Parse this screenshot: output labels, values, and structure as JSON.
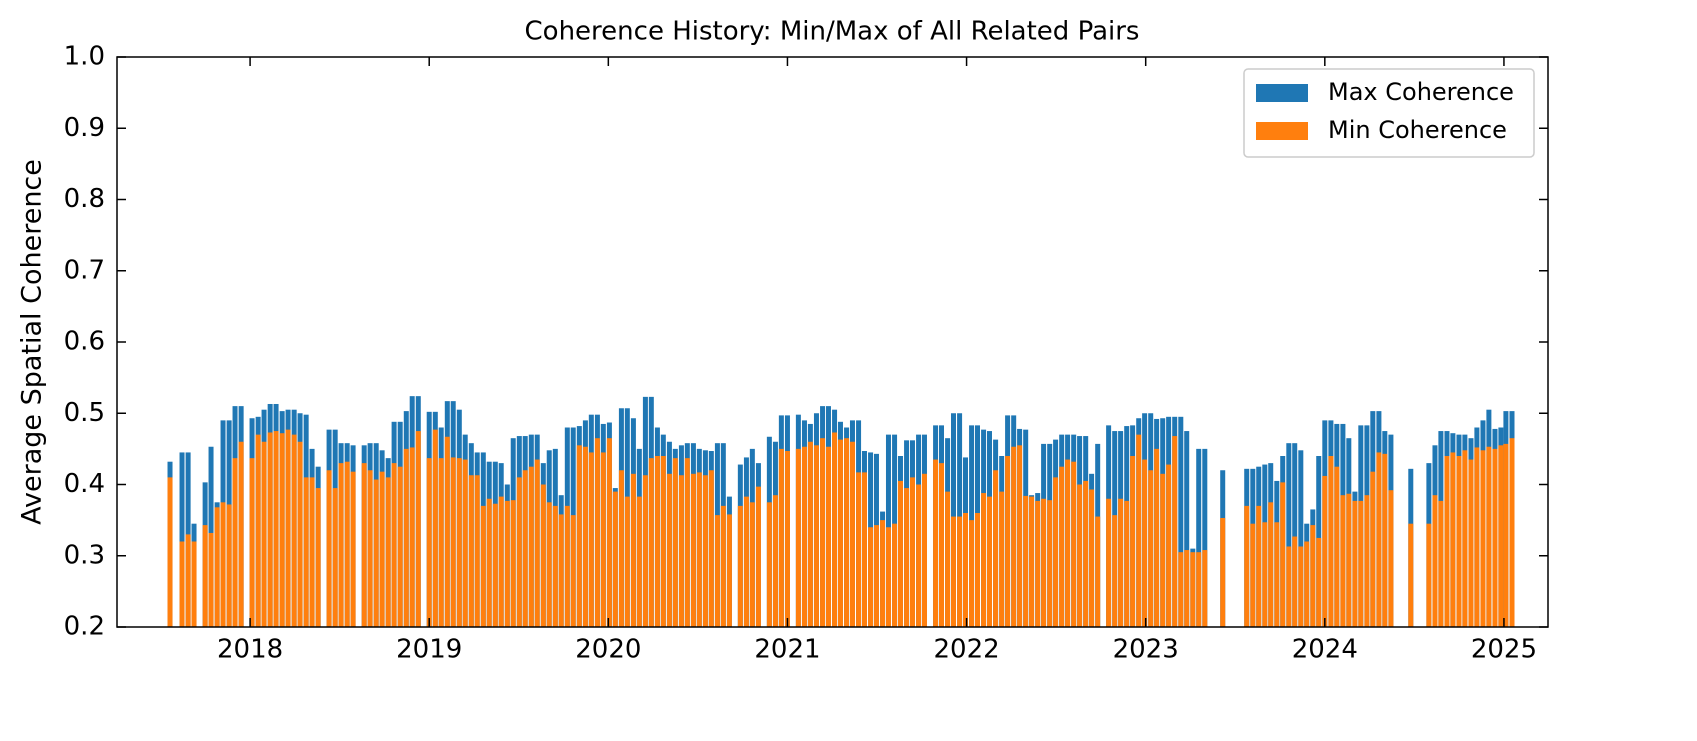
{
  "chart_data": {
    "type": "bar",
    "title": "Coherence History: Min/Max of All Related Pairs",
    "y_label": "Average Spatial Coherence",
    "legend": "upper right",
    "grid": false,
    "xlim": [
      2017.257,
      2025.246
    ],
    "xticks": [
      2018,
      2019,
      2020,
      2021,
      2022,
      2023,
      2024,
      2025
    ],
    "ylim": [
      0.2,
      1.0
    ],
    "yticks": [
      0.2,
      0.3,
      0.4,
      0.5,
      0.6,
      0.7,
      0.8,
      0.9,
      {
        "value": 1.0,
        "label": "1.0"
      }
    ],
    "x": [
      2017.553,
      2017.62,
      2017.654,
      2017.687,
      2017.749,
      2017.782,
      2017.816,
      2017.849,
      2017.883,
      2017.916,
      2017.95,
      2018.011,
      2018.045,
      2018.078,
      2018.112,
      2018.145,
      2018.179,
      2018.212,
      2018.246,
      2018.279,
      2018.313,
      2018.346,
      2018.38,
      2018.441,
      2018.475,
      2018.508,
      2018.542,
      2018.575,
      2018.637,
      2018.67,
      2018.704,
      2018.737,
      2018.771,
      2018.804,
      2018.838,
      2018.872,
      2018.905,
      2018.939,
      2019.0,
      2019.034,
      2019.067,
      2019.101,
      2019.134,
      2019.168,
      2019.201,
      2019.235,
      2019.268,
      2019.302,
      2019.335,
      2019.369,
      2019.402,
      2019.436,
      2019.469,
      2019.503,
      2019.536,
      2019.57,
      2019.603,
      2019.637,
      2019.67,
      2019.704,
      2019.737,
      2019.771,
      2019.804,
      2019.838,
      2019.872,
      2019.905,
      2019.939,
      2019.972,
      2020.006,
      2020.039,
      2020.073,
      2020.106,
      2020.14,
      2020.173,
      2020.207,
      2020.24,
      2020.274,
      2020.307,
      2020.341,
      2020.374,
      2020.408,
      2020.441,
      2020.475,
      2020.508,
      2020.542,
      2020.575,
      2020.609,
      2020.642,
      2020.676,
      2020.737,
      2020.771,
      2020.804,
      2020.838,
      2020.899,
      2020.933,
      2020.966,
      2021.0,
      2021.061,
      2021.095,
      2021.128,
      2021.162,
      2021.196,
      2021.229,
      2021.263,
      2021.296,
      2021.33,
      2021.363,
      2021.397,
      2021.43,
      2021.464,
      2021.497,
      2021.531,
      2021.564,
      2021.598,
      2021.631,
      2021.665,
      2021.698,
      2021.732,
      2021.765,
      2021.827,
      2021.86,
      2021.894,
      2021.927,
      2021.961,
      2021.994,
      2022.028,
      2022.061,
      2022.095,
      2022.128,
      2022.162,
      2022.196,
      2022.229,
      2022.263,
      2022.296,
      2022.33,
      2022.363,
      2022.397,
      2022.43,
      2022.464,
      2022.497,
      2022.531,
      2022.564,
      2022.598,
      2022.631,
      2022.665,
      2022.698,
      2022.732,
      2022.793,
      2022.827,
      2022.86,
      2022.894,
      2022.927,
      2022.961,
      2022.994,
      2023.028,
      2023.061,
      2023.095,
      2023.128,
      2023.162,
      2023.196,
      2023.229,
      2023.263,
      2023.296,
      2023.33,
      2023.43,
      2023.564,
      2023.598,
      2023.631,
      2023.665,
      2023.698,
      2023.732,
      2023.765,
      2023.799,
      2023.832,
      2023.866,
      2023.899,
      2023.933,
      2023.966,
      2024.0,
      2024.034,
      2024.067,
      2024.101,
      2024.134,
      2024.168,
      2024.201,
      2024.235,
      2024.268,
      2024.302,
      2024.335,
      2024.369,
      2024.48,
      2024.581,
      2024.615,
      2024.648,
      2024.682,
      2024.715,
      2024.749,
      2024.782,
      2024.816,
      2024.849,
      2024.883,
      2024.916,
      2024.95,
      2024.983,
      2025.011,
      2025.045
    ],
    "series": [
      {
        "name": "Max Coherence",
        "color": "#1f77b4",
        "values": [
          0.432,
          0.445,
          0.445,
          0.345,
          0.403,
          0.453,
          0.375,
          0.49,
          0.49,
          0.51,
          0.51,
          0.493,
          0.495,
          0.505,
          0.513,
          0.513,
          0.503,
          0.505,
          0.505,
          0.5,
          0.498,
          0.45,
          0.425,
          0.477,
          0.477,
          0.458,
          0.458,
          0.455,
          0.455,
          0.458,
          0.458,
          0.448,
          0.437,
          0.488,
          0.488,
          0.503,
          0.524,
          0.524,
          0.502,
          0.502,
          0.48,
          0.517,
          0.517,
          0.505,
          0.47,
          0.458,
          0.445,
          0.445,
          0.432,
          0.432,
          0.43,
          0.4,
          0.465,
          0.468,
          0.468,
          0.47,
          0.47,
          0.43,
          0.448,
          0.45,
          0.385,
          0.48,
          0.48,
          0.482,
          0.49,
          0.498,
          0.498,
          0.485,
          0.487,
          0.395,
          0.507,
          0.507,
          0.493,
          0.45,
          0.523,
          0.523,
          0.48,
          0.47,
          0.46,
          0.45,
          0.455,
          0.458,
          0.458,
          0.45,
          0.448,
          0.447,
          0.458,
          0.458,
          0.383,
          0.428,
          0.438,
          0.45,
          0.43,
          0.467,
          0.46,
          0.497,
          0.497,
          0.498,
          0.49,
          0.485,
          0.5,
          0.51,
          0.51,
          0.505,
          0.488,
          0.48,
          0.49,
          0.49,
          0.447,
          0.445,
          0.443,
          0.362,
          0.47,
          0.47,
          0.44,
          0.462,
          0.462,
          0.47,
          0.47,
          0.483,
          0.483,
          0.465,
          0.5,
          0.5,
          0.438,
          0.483,
          0.483,
          0.477,
          0.475,
          0.463,
          0.44,
          0.497,
          0.497,
          0.478,
          0.477,
          0.385,
          0.388,
          0.457,
          0.457,
          0.463,
          0.47,
          0.47,
          0.47,
          0.468,
          0.468,
          0.415,
          0.457,
          0.483,
          0.475,
          0.475,
          0.482,
          0.483,
          0.493,
          0.5,
          0.5,
          0.492,
          0.493,
          0.495,
          0.495,
          0.495,
          0.475,
          0.31,
          0.45,
          0.45,
          0.42,
          0.422,
          0.422,
          0.425,
          0.428,
          0.43,
          0.405,
          0.44,
          0.458,
          0.458,
          0.448,
          0.345,
          0.365,
          0.44,
          0.49,
          0.49,
          0.485,
          0.485,
          0.465,
          0.39,
          0.483,
          0.483,
          0.503,
          0.503,
          0.475,
          0.47,
          0.422,
          0.43,
          0.455,
          0.475,
          0.475,
          0.472,
          0.47,
          0.47,
          0.465,
          0.48,
          0.49,
          0.505,
          0.478,
          0.48,
          0.503,
          0.503
        ]
      },
      {
        "name": "Min Coherence",
        "color": "#ff7f0e",
        "values": [
          0.41,
          0.32,
          0.33,
          0.32,
          0.343,
          0.332,
          0.368,
          0.375,
          0.372,
          0.437,
          0.46,
          0.437,
          0.47,
          0.46,
          0.473,
          0.475,
          0.472,
          0.477,
          0.47,
          0.46,
          0.41,
          0.41,
          0.395,
          0.42,
          0.395,
          0.43,
          0.432,
          0.418,
          0.43,
          0.42,
          0.407,
          0.418,
          0.41,
          0.43,
          0.425,
          0.45,
          0.452,
          0.475,
          0.437,
          0.477,
          0.437,
          0.467,
          0.438,
          0.437,
          0.435,
          0.413,
          0.413,
          0.37,
          0.38,
          0.373,
          0.383,
          0.377,
          0.378,
          0.41,
          0.42,
          0.425,
          0.435,
          0.4,
          0.375,
          0.37,
          0.358,
          0.37,
          0.357,
          0.455,
          0.453,
          0.445,
          0.465,
          0.445,
          0.465,
          0.39,
          0.42,
          0.383,
          0.415,
          0.383,
          0.413,
          0.437,
          0.44,
          0.44,
          0.415,
          0.437,
          0.413,
          0.437,
          0.415,
          0.417,
          0.413,
          0.42,
          0.357,
          0.37,
          0.358,
          0.37,
          0.383,
          0.375,
          0.397,
          0.375,
          0.385,
          0.45,
          0.447,
          0.45,
          0.453,
          0.46,
          0.455,
          0.465,
          0.453,
          0.473,
          0.463,
          0.465,
          0.46,
          0.417,
          0.417,
          0.34,
          0.343,
          0.35,
          0.34,
          0.345,
          0.405,
          0.395,
          0.41,
          0.4,
          0.415,
          0.435,
          0.43,
          0.39,
          0.355,
          0.355,
          0.36,
          0.35,
          0.36,
          0.388,
          0.383,
          0.42,
          0.39,
          0.44,
          0.453,
          0.455,
          0.384,
          0.383,
          0.377,
          0.38,
          0.378,
          0.41,
          0.425,
          0.435,
          0.432,
          0.4,
          0.405,
          0.393,
          0.355,
          0.38,
          0.357,
          0.38,
          0.377,
          0.44,
          0.47,
          0.435,
          0.42,
          0.45,
          0.415,
          0.428,
          0.468,
          0.305,
          0.308,
          0.305,
          0.305,
          0.308,
          0.353,
          0.37,
          0.345,
          0.37,
          0.347,
          0.375,
          0.347,
          0.403,
          0.313,
          0.327,
          0.313,
          0.32,
          0.343,
          0.325,
          0.412,
          0.44,
          0.425,
          0.385,
          0.387,
          0.377,
          0.377,
          0.385,
          0.418,
          0.445,
          0.443,
          0.392,
          0.345,
          0.345,
          0.385,
          0.377,
          0.44,
          0.445,
          0.44,
          0.448,
          0.435,
          0.452,
          0.448,
          0.453,
          0.45,
          0.455,
          0.457,
          0.465
        ]
      }
    ]
  }
}
